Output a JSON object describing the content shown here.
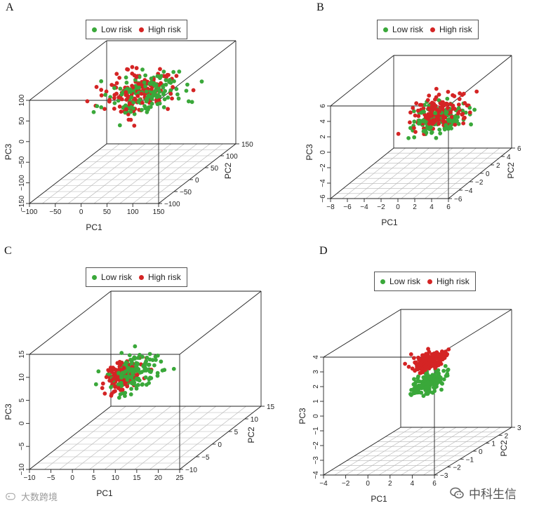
{
  "colors": {
    "low": "#3aa83a",
    "high": "#d42424",
    "axis": "#222222",
    "grid": "#b5b5b5"
  },
  "watermarks": {
    "left": "大数跨境",
    "right": "中科生信"
  },
  "chart_data": [
    {
      "panel": "A",
      "type": "scatter",
      "legend": [
        "Low risk",
        "High risk"
      ],
      "xlabel": "PC1",
      "ylabel": "PC2",
      "zlabel": "PC3",
      "xlim": [
        -100,
        150
      ],
      "ylim": [
        -150,
        150
      ],
      "zlim": [
        -150,
        100
      ],
      "xticks": [
        "−100",
        "−50",
        "0",
        "50",
        "100",
        "150"
      ],
      "yticks": [
        "−100",
        "−50",
        "0",
        "50",
        "100",
        "150"
      ],
      "zticks": [
        "−150",
        "−100",
        "−50",
        "0",
        "50",
        "100"
      ],
      "clusters": {
        "low": {
          "center": [
            40,
            10,
            40
          ],
          "spread": [
            55,
            60,
            35
          ],
          "n": 150
        },
        "high": {
          "center": [
            30,
            10,
            40
          ],
          "spread": [
            50,
            60,
            33
          ],
          "n": 150
        }
      }
    },
    {
      "panel": "B",
      "type": "scatter",
      "legend": [
        "Low risk",
        "High risk"
      ],
      "xlabel": "PC1",
      "ylabel": "PC2",
      "zlabel": "PC3",
      "xlim": [
        -8,
        6
      ],
      "ylim": [
        -6,
        6
      ],
      "zlim": [
        -6,
        6
      ],
      "xticks": [
        "−8",
        "−6",
        "−4",
        "−2",
        "0",
        "2",
        "4",
        "6"
      ],
      "yticks": [
        "−6",
        "−4",
        "−2",
        "0",
        "2",
        "4",
        "6"
      ],
      "zticks": [
        "−6",
        "−4",
        "−2",
        "0",
        "2",
        "4",
        "6"
      ],
      "clusters": {
        "low": {
          "center": [
            1,
            0,
            1
          ],
          "spread": [
            2.6,
            2.2,
            1.6
          ],
          "n": 150
        },
        "high": {
          "center": [
            1,
            0,
            1.8
          ],
          "spread": [
            2.4,
            2.2,
            1.6
          ],
          "n": 150
        }
      }
    },
    {
      "panel": "C",
      "type": "scatter",
      "legend": [
        "Low risk",
        "High risk"
      ],
      "xlabel": "PC1",
      "ylabel": "PC2",
      "zlabel": "PC3",
      "xlim": [
        -10,
        25
      ],
      "ylim": [
        -15,
        15
      ],
      "zlim": [
        -10,
        15
      ],
      "xticks": [
        "−10",
        "−5",
        "0",
        "5",
        "10",
        "15",
        "20",
        "25"
      ],
      "yticks": [
        "−10",
        "−5",
        "0",
        "5",
        "10",
        "15"
      ],
      "zticks": [
        "−10",
        "−5",
        "0",
        "5",
        "10",
        "15"
      ],
      "clusters": {
        "low": {
          "center": [
            5,
            0,
            4
          ],
          "spread": [
            5,
            5,
            3
          ],
          "n": 150
        },
        "high": {
          "center": [
            2,
            0,
            3.5
          ],
          "spread": [
            3,
            4,
            2.5
          ],
          "n": 150
        }
      }
    },
    {
      "panel": "D",
      "type": "scatter",
      "legend": [
        "Low risk",
        "High risk"
      ],
      "xlabel": "PC1",
      "ylabel": "PC2",
      "zlabel": "PC3",
      "xlim": [
        -4,
        6
      ],
      "ylim": [
        -4,
        4
      ],
      "zlim": [
        -4,
        4
      ],
      "xticks": [
        "−4",
        "−2",
        "0",
        "2",
        "4",
        "6"
      ],
      "yticks": [
        "−3",
        "−2",
        "−1",
        "0",
        "1",
        "2",
        "3"
      ],
      "zticks": [
        "−4",
        "−3",
        "−2",
        "−1",
        "0",
        "1",
        "2",
        "3",
        "4"
      ],
      "clusters": {
        "low": {
          "center": [
            2,
            0,
            0.6
          ],
          "spread": [
            1.1,
            1.2,
            0.5
          ],
          "n": 150
        },
        "high": {
          "center": [
            2,
            0,
            2.1
          ],
          "spread": [
            1.0,
            1.2,
            0.5
          ],
          "n": 150
        }
      }
    }
  ]
}
